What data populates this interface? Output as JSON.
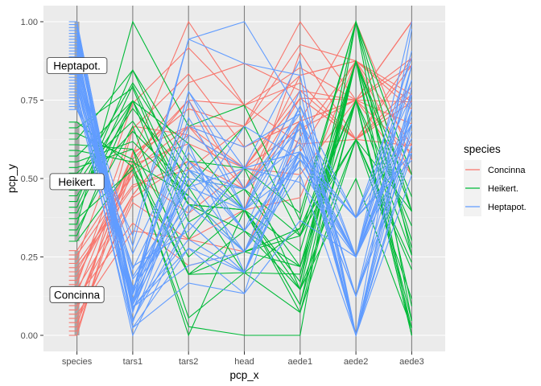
{
  "chart_data": {
    "type": "line",
    "subtype": "parallel-coordinates",
    "title": "",
    "xlabel": "pcp_x",
    "ylabel": "pcp_y",
    "ylim": [
      0,
      1
    ],
    "yticks": [
      "0.00",
      "0.25",
      "0.50",
      "0.75",
      "1.00"
    ],
    "ytick_values": [
      0,
      0.25,
      0.5,
      0.75,
      1.0
    ],
    "categories": [
      "species",
      "tars1",
      "tars2",
      "head",
      "aede1",
      "aede2",
      "aede3"
    ],
    "grid": true,
    "legend": {
      "title": "species",
      "position": "right",
      "entries": [
        {
          "label": "Concinna",
          "color": "#F8766D"
        },
        {
          "label": "Heikert.",
          "color": "#00BA38"
        },
        {
          "label": "Heptapot.",
          "color": "#619CFF"
        }
      ]
    },
    "level_labels": [
      {
        "label": "Heptapot.",
        "y": 0.86
      },
      {
        "label": "Heikert.",
        "y": 0.49
      },
      {
        "label": "Concinna",
        "y": 0.13
      }
    ],
    "species_ranges": {
      "Concinna": [
        0.0,
        0.27
      ],
      "Heikert.": [
        0.3,
        0.68
      ],
      "Heptapot.": [
        0.72,
        1.0
      ]
    },
    "raw_columns": [
      "tars1",
      "tars2",
      "head",
      "aede1",
      "aede2",
      "aede3"
    ],
    "series": [
      {
        "name": "Concinna",
        "color": "#F8766D",
        "rows": [
          [
            191,
            131,
            53,
            150,
            15,
            104
          ],
          [
            185,
            134,
            50,
            147,
            13,
            105
          ],
          [
            200,
            137,
            52,
            144,
            14,
            102
          ],
          [
            173,
            127,
            50,
            144,
            16,
            97
          ],
          [
            171,
            118,
            49,
            153,
            13,
            106
          ],
          [
            160,
            118,
            47,
            140,
            15,
            99
          ],
          [
            188,
            134,
            54,
            151,
            14,
            98
          ],
          [
            186,
            129,
            51,
            143,
            14,
            110
          ],
          [
            174,
            131,
            52,
            144,
            14,
            116
          ],
          [
            163,
            115,
            47,
            142,
            15,
            95
          ],
          [
            190,
            143,
            54,
            141,
            13,
            99
          ],
          [
            174,
            131,
            50,
            150,
            15,
            105
          ],
          [
            201,
            130,
            51,
            148,
            13,
            110
          ],
          [
            190,
            133,
            53,
            154,
            15,
            106
          ],
          [
            182,
            130,
            51,
            147,
            14,
            105
          ],
          [
            184,
            131,
            51,
            137,
            14,
            95
          ],
          [
            177,
            127,
            49,
            134,
            15,
            105
          ],
          [
            178,
            126,
            53,
            157,
            14,
            116
          ],
          [
            210,
            140,
            54,
            149,
            13,
            107
          ],
          [
            182,
            121,
            51,
            147,
            13,
            111
          ],
          [
            186,
            136,
            56,
            148,
            14,
            111
          ]
        ]
      },
      {
        "name": "Heikert.",
        "color": "#00BA38",
        "rows": [
          [
            186,
            107,
            49,
            120,
            14,
            84
          ],
          [
            211,
            122,
            49,
            123,
            16,
            95
          ],
          [
            201,
            114,
            47,
            130,
            14,
            74
          ],
          [
            242,
            131,
            54,
            131,
            16,
            90
          ],
          [
            184,
            108,
            43,
            116,
            16,
            75
          ],
          [
            211,
            118,
            51,
            122,
            15,
            90
          ],
          [
            217,
            122,
            49,
            127,
            15,
            73
          ],
          [
            223,
            127,
            51,
            132,
            16,
            84
          ],
          [
            208,
            125,
            50,
            125,
            14,
            88
          ],
          [
            199,
            124,
            46,
            119,
            13,
            78
          ],
          [
            211,
            129,
            49,
            122,
            13,
            83
          ],
          [
            218,
            126,
            49,
            120,
            15,
            85
          ],
          [
            203,
            122,
            49,
            119,
            14,
            73
          ],
          [
            192,
            116,
            49,
            123,
            15,
            90
          ],
          [
            195,
            123,
            47,
            125,
            15,
            77
          ],
          [
            211,
            122,
            48,
            125,
            14,
            73
          ],
          [
            187,
            123,
            47,
            129,
            14,
            75
          ],
          [
            192,
            109,
            46,
            130,
            13,
            90
          ],
          [
            223,
            124,
            53,
            129,
            13,
            82
          ],
          [
            188,
            114,
            48,
            122,
            12,
            74
          ],
          [
            216,
            120,
            50,
            129,
            15,
            86
          ],
          [
            185,
            114,
            46,
            124,
            15,
            92
          ]
        ]
      },
      {
        "name": "Heptapot.",
        "color": "#619CFF",
        "rows": [
          [
            158,
            141,
            58,
            145,
            8,
            107
          ],
          [
            146,
            119,
            51,
            140,
            11,
            111
          ],
          [
            151,
            130,
            51,
            140,
            10,
            116
          ],
          [
            122,
            113,
            45,
            131,
            10,
            102
          ],
          [
            138,
            121,
            53,
            139,
            11,
            106
          ],
          [
            130,
            115,
            47,
            139,
            11,
            98
          ],
          [
            119,
            120,
            46,
            139,
            10,
            104
          ],
          [
            145,
            128,
            48,
            139,
            11,
            98
          ],
          [
            125,
            120,
            46,
            140,
            9,
            101
          ],
          [
            132,
            134,
            49,
            148,
            8,
            102
          ],
          [
            136,
            135,
            51,
            136,
            10,
            112
          ],
          [
            131,
            123,
            47,
            140,
            10,
            103
          ],
          [
            136,
            131,
            52,
            145,
            8,
            104
          ],
          [
            137,
            126,
            49,
            146,
            10,
            110
          ],
          [
            141,
            122,
            47,
            140,
            10,
            105
          ],
          [
            154,
            141,
            56,
            150,
            8,
            115
          ],
          [
            125,
            122,
            47,
            137,
            8,
            98
          ],
          [
            130,
            118,
            46,
            140,
            9,
            99
          ],
          [
            136,
            132,
            49,
            144,
            11,
            108
          ],
          [
            129,
            125,
            47,
            144,
            9,
            104
          ],
          [
            122,
            117,
            45,
            144,
            10,
            100
          ],
          [
            128,
            129,
            46,
            142,
            8,
            95
          ],
          [
            142,
            124,
            51,
            152,
            8,
            99
          ],
          [
            133,
            124,
            49,
            138,
            10,
            100
          ],
          [
            135,
            127,
            48,
            146,
            11,
            102
          ],
          [
            124,
            126,
            48,
            140,
            10,
            102
          ],
          [
            132,
            125,
            50,
            145,
            9,
            110
          ],
          [
            133,
            127,
            49,
            140,
            11,
            97
          ],
          [
            130,
            117,
            46,
            144,
            8,
            99
          ],
          [
            135,
            135,
            50,
            141,
            10,
            108
          ],
          [
            131,
            126,
            50,
            143,
            8,
            106
          ]
        ]
      }
    ]
  }
}
